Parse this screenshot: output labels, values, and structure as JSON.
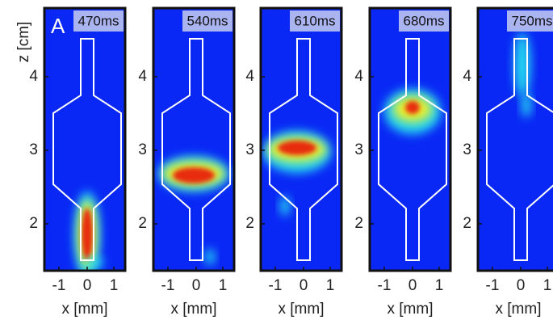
{
  "figure": {
    "label": "A",
    "y_axis_label": "z [cm]",
    "y_ticks": [
      "4",
      "3",
      "2"
    ],
    "panels": [
      {
        "time": "470ms",
        "x_label": "x [mm]",
        "x_ticks": [
          "-1",
          "0",
          "1"
        ]
      },
      {
        "time": "540ms",
        "x_label": "x [mm]",
        "x_ticks": [
          "-1",
          "0",
          "1"
        ]
      },
      {
        "time": "610ms",
        "x_label": "x [mm]",
        "x_ticks": [
          "-1",
          "0",
          "1"
        ]
      },
      {
        "time": "680ms",
        "x_label": "x [mm]",
        "x_ticks": [
          "-1",
          "0",
          "1"
        ]
      },
      {
        "time": "750ms",
        "x_label": "x [mm]",
        "x_ticks": [
          "-1",
          "0",
          "1"
        ]
      }
    ]
  }
}
